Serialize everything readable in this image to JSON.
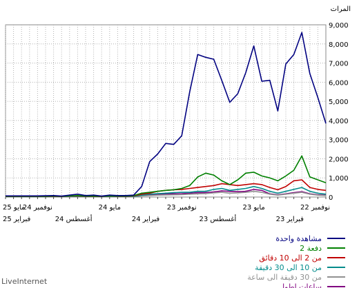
{
  "chart_data": {
    "type": "line",
    "brand": "LiveInternet",
    "ylabel": "المرات",
    "ylim": [
      0,
      9000
    ],
    "y_ticks": [
      "0",
      "1,000",
      "2,000",
      "3,000",
      "4,000",
      "5,000",
      "6,000",
      "7,000",
      "8,000",
      "9,000"
    ],
    "grid": true,
    "legend_position": "bottom-right",
    "x_direction": "right-to-left",
    "x_count": 41,
    "x_ticks_row1": [
      {
        "index": 0,
        "label": "نوفمبر 22"
      },
      {
        "index": 9,
        "label": "مايو 23"
      },
      {
        "index": 18,
        "label": "نوفمبر 23"
      },
      {
        "index": 27,
        "label": "مايو 24"
      },
      {
        "index": 36,
        "label": "نوفمبر 24"
      },
      {
        "index": 45,
        "label": "مايو 25"
      }
    ],
    "x_ticks_row2": [
      {
        "index": 4.5,
        "label": "فبراير 23"
      },
      {
        "index": 13.5,
        "label": "أغسطس 23"
      },
      {
        "index": 22.5,
        "label": "فبراير 24"
      },
      {
        "index": 31.5,
        "label": "أغسطس 24"
      },
      {
        "index": 40.5,
        "label": "فبراير 25"
      }
    ],
    "series": [
      {
        "name": "مشاهدة واحدة",
        "color": "#000080",
        "values": [
          3850,
          5200,
          6450,
          8600,
          7450,
          6950,
          4500,
          6100,
          6050,
          7900,
          6500,
          5400,
          4950,
          6100,
          7200,
          7300,
          7450,
          5500,
          3200,
          2750,
          2800,
          2250,
          1850,
          550,
          100,
          80,
          80,
          100,
          50,
          100,
          80,
          150,
          100,
          50,
          80,
          70,
          60,
          60,
          60,
          60,
          60
        ]
      },
      {
        "name": "2 دفعة",
        "color": "#008000",
        "values": [
          750,
          900,
          1050,
          2150,
          1400,
          1100,
          850,
          1000,
          1100,
          1300,
          1250,
          900,
          650,
          850,
          1150,
          1250,
          1050,
          600,
          450,
          380,
          350,
          300,
          250,
          200,
          80,
          50,
          50,
          60,
          40,
          50,
          50,
          80,
          60,
          40,
          50,
          40,
          40,
          40,
          40,
          40,
          40
        ]
      },
      {
        "name": "من 2 الى 10 دقائق",
        "color": "#C00000",
        "values": [
          350,
          400,
          500,
          900,
          850,
          550,
          380,
          500,
          650,
          700,
          650,
          600,
          650,
          700,
          600,
          550,
          500,
          450,
          400,
          380,
          350,
          300,
          200,
          150,
          60,
          40,
          40,
          50,
          30,
          40,
          40,
          60,
          50,
          30,
          40,
          30,
          30,
          30,
          30,
          30,
          30
        ]
      },
      {
        "name": "من 10 الى 30 دقيقة",
        "color": "#008B8B",
        "values": [
          150,
          200,
          300,
          500,
          400,
          300,
          200,
          300,
          450,
          550,
          450,
          400,
          350,
          450,
          400,
          300,
          300,
          250,
          250,
          230,
          200,
          180,
          150,
          100,
          40,
          30,
          30,
          40,
          25,
          30,
          30,
          40,
          35,
          25,
          30,
          25,
          25,
          25,
          25,
          25,
          25
        ]
      },
      {
        "name": "من 30 دقيقة الى ساعة",
        "color": "#909090",
        "values": [
          80,
          100,
          150,
          250,
          200,
          150,
          100,
          150,
          250,
          300,
          250,
          220,
          200,
          250,
          220,
          180,
          170,
          150,
          130,
          120,
          110,
          100,
          80,
          60,
          30,
          20,
          20,
          25,
          15,
          20,
          20,
          25,
          20,
          15,
          20,
          15,
          15,
          15,
          15,
          15,
          15
        ]
      },
      {
        "name": "ساعات اطول",
        "color": "#800080",
        "values": [
          100,
          120,
          170,
          280,
          230,
          170,
          120,
          170,
          350,
          400,
          300,
          280,
          300,
          320,
          270,
          230,
          230,
          200,
          180,
          170,
          160,
          140,
          110,
          80,
          40,
          30,
          30,
          35,
          20,
          30,
          30,
          35,
          30,
          20,
          25,
          20,
          20,
          20,
          20,
          20,
          20
        ]
      }
    ]
  }
}
